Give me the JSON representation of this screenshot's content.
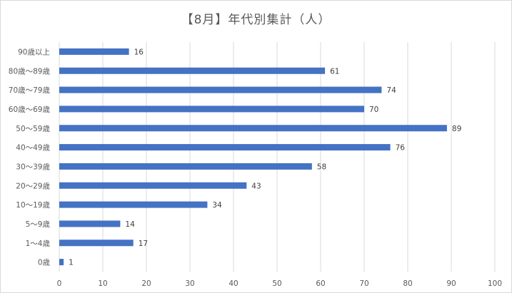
{
  "chart_data": {
    "type": "bar",
    "orientation": "horizontal",
    "title": "【8月】年代別集計（人）",
    "categories": [
      "90歳以上",
      "80歳～89歳",
      "70歳～79歳",
      "60歳～69歳",
      "50～59歳",
      "40～49歳",
      "30～39歳",
      "20～29歳",
      "10～19歳",
      "5～9歳",
      "1～4歳",
      "0歳"
    ],
    "values": [
      16,
      61,
      74,
      70,
      89,
      76,
      58,
      43,
      34,
      14,
      17,
      1
    ],
    "xlim": [
      0,
      100
    ],
    "xticks": [
      0,
      10,
      20,
      30,
      40,
      50,
      60,
      70,
      80,
      90,
      100
    ],
    "grid": "vertical",
    "legend": "none",
    "data_labels": true,
    "bar_color": "#4472c4",
    "grid_color": "#d9d9d9"
  }
}
